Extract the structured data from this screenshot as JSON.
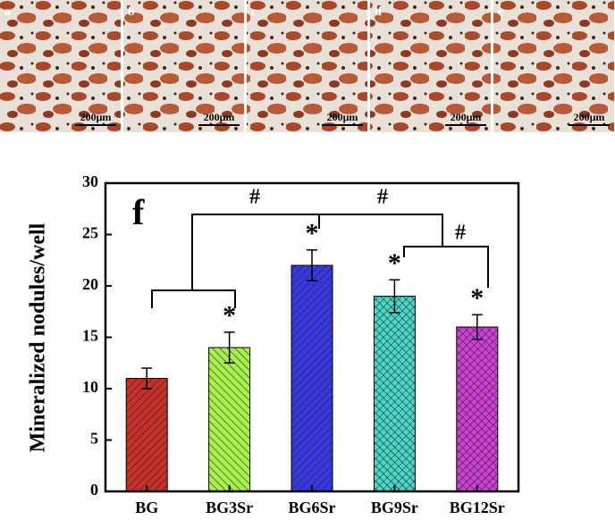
{
  "images": [
    {
      "label": "a",
      "scale": "200μm"
    },
    {
      "label": "b",
      "scale": "200μm"
    },
    {
      "label": "c",
      "scale": "200μm"
    },
    {
      "label": "d",
      "scale": "200μm"
    },
    {
      "label": "e",
      "scale": "200μm"
    }
  ],
  "chart_data": {
    "type": "bar",
    "panel_label": "f",
    "y_label": "Mineralized nodules/well",
    "categories": [
      "BG",
      "BG3Sr",
      "BG6Sr",
      "BG9Sr",
      "BG12Sr"
    ],
    "values": [
      11,
      14,
      22,
      19,
      16
    ],
    "errors": [
      1,
      1.5,
      1.5,
      1.6,
      1.2
    ],
    "colors": [
      "#c8302a",
      "#a8f04c",
      "#3838e0",
      "#48d8c8",
      "#d040d8"
    ],
    "star_labels": [
      null,
      "*",
      "*",
      "*",
      "*"
    ],
    "hash_labels": [
      "#",
      "#",
      "#"
    ],
    "ylim": [
      0,
      30
    ],
    "yticks": [
      0,
      5,
      10,
      15,
      20,
      25,
      30
    ]
  }
}
